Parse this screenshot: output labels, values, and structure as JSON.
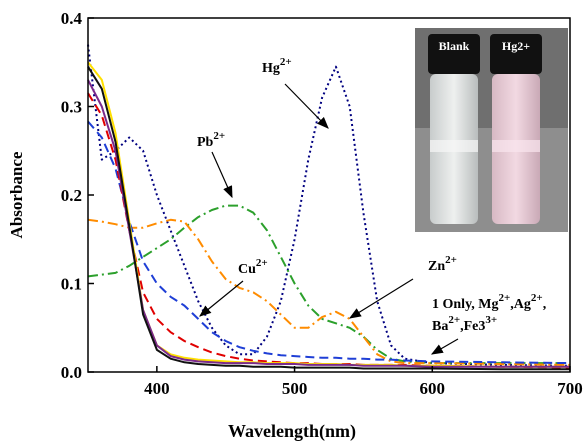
{
  "chart_data": {
    "type": "line",
    "x_label": "Wavelength(nm)",
    "y_label": "Absorbance",
    "xlim": [
      350,
      700
    ],
    "ylim": [
      0,
      0.4
    ],
    "xticks": [
      400,
      500,
      600,
      700
    ],
    "yticks": [
      {
        "value": 0,
        "label": "0.0"
      },
      0.1,
      0.2,
      0.3,
      0.4
    ],
    "x": [
      350,
      360,
      370,
      380,
      390,
      400,
      410,
      420,
      430,
      440,
      450,
      460,
      470,
      480,
      490,
      500,
      510,
      520,
      530,
      540,
      550,
      560,
      570,
      580,
      600,
      650,
      700
    ],
    "series": [
      {
        "color": "#000080",
        "linestyle": "dotted",
        "values": [
          0.37,
          0.24,
          0.25,
          0.265,
          0.25,
          0.2,
          0.16,
          0.12,
          0.08,
          0.05,
          0.03,
          0.02,
          0.02,
          0.04,
          0.08,
          0.15,
          0.24,
          0.31,
          0.345,
          0.3,
          0.18,
          0.08,
          0.03,
          0.015,
          0.01,
          0.008,
          0.007
        ]
      },
      {
        "color": "#2ca02c",
        "linestyle": "dashdot",
        "values": [
          0.108,
          0.11,
          0.112,
          0.12,
          0.13,
          0.14,
          0.15,
          0.163,
          0.175,
          0.183,
          0.188,
          0.188,
          0.18,
          0.16,
          0.13,
          0.1,
          0.075,
          0.06,
          0.055,
          0.05,
          0.04,
          0.025,
          0.015,
          0.012,
          0.01,
          0.01,
          0.01
        ]
      },
      {
        "color": "#ff8c00",
        "linestyle": "dashdot",
        "values": [
          0.172,
          0.17,
          0.167,
          0.163,
          0.163,
          0.168,
          0.172,
          0.17,
          0.15,
          0.125,
          0.105,
          0.095,
          0.09,
          0.08,
          0.065,
          0.05,
          0.05,
          0.062,
          0.068,
          0.06,
          0.04,
          0.02,
          0.012,
          0.01,
          0.01,
          0.009,
          0.008
        ]
      },
      {
        "color": "#1f3fd6",
        "linestyle": "dashed",
        "values": [
          0.283,
          0.265,
          0.23,
          0.17,
          0.125,
          0.1,
          0.085,
          0.075,
          0.06,
          0.045,
          0.035,
          0.028,
          0.024,
          0.021,
          0.019,
          0.018,
          0.017,
          0.016,
          0.016,
          0.015,
          0.015,
          0.014,
          0.014,
          0.013,
          0.012,
          0.011,
          0.01
        ]
      },
      {
        "color": "#e00000",
        "linestyle": "dashed",
        "values": [
          0.315,
          0.29,
          0.24,
          0.16,
          0.09,
          0.06,
          0.045,
          0.035,
          0.028,
          0.022,
          0.018,
          0.015,
          0.013,
          0.012,
          0.011,
          0.01,
          0.01,
          0.009,
          0.009,
          0.009,
          0.008,
          0.008,
          0.008,
          0.008,
          0.007,
          0.006,
          0.005
        ]
      },
      {
        "color": "#ffe000",
        "linestyle": "solid",
        "values": [
          0.35,
          0.33,
          0.27,
          0.17,
          0.07,
          0.03,
          0.02,
          0.016,
          0.014,
          0.013,
          0.012,
          0.011,
          0.011,
          0.01,
          0.01,
          0.01,
          0.009,
          0.009,
          0.009,
          0.008,
          0.008,
          0.008,
          0.008,
          0.007,
          0.007,
          0.006,
          0.006
        ]
      },
      {
        "color": "#7b2a8c",
        "linestyle": "solid",
        "values": [
          0.33,
          0.3,
          0.25,
          0.16,
          0.07,
          0.03,
          0.018,
          0.014,
          0.012,
          0.011,
          0.01,
          0.01,
          0.01,
          0.009,
          0.009,
          0.009,
          0.008,
          0.008,
          0.008,
          0.008,
          0.007,
          0.007,
          0.007,
          0.007,
          0.006,
          0.006,
          0.006
        ]
      },
      {
        "color": "#111111",
        "linestyle": "solid",
        "values": [
          0.345,
          0.32,
          0.26,
          0.165,
          0.065,
          0.025,
          0.015,
          0.011,
          0.009,
          0.008,
          0.007,
          0.007,
          0.006,
          0.006,
          0.006,
          0.005,
          0.005,
          0.005,
          0.005,
          0.005,
          0.004,
          0.004,
          0.004,
          0.004,
          0.004,
          0.003,
          0.003
        ]
      }
    ],
    "annotations": [
      {
        "lines": [
          [
            "Hg",
            "2+"
          ]
        ]
      },
      {
        "lines": [
          [
            "Pb",
            "2+"
          ]
        ]
      },
      {
        "lines": [
          [
            "Cu",
            "2+"
          ]
        ]
      },
      {
        "lines": [
          [
            "Zn",
            "2+"
          ]
        ]
      },
      {
        "lines": [
          [
            "1 Only, Mg",
            "2+",
            ",Ag",
            "2+",
            ","
          ],
          [
            "Ba",
            "2+",
            ",Fe3",
            "3+"
          ]
        ]
      }
    ],
    "inset": {
      "labels": [
        "Blank",
        "Hg2+"
      ]
    }
  }
}
